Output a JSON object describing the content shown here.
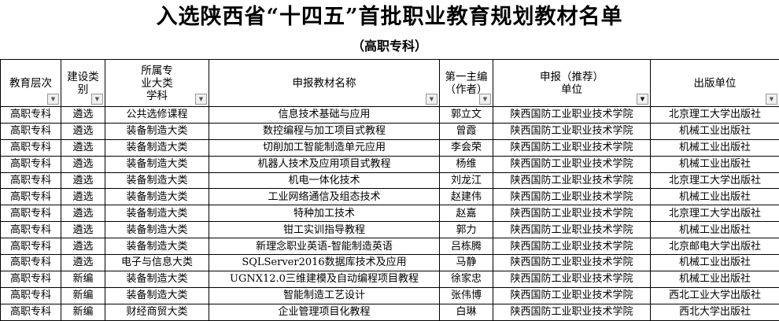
{
  "title": "入选陕西省“十四五”首批职业教育规划教材名单",
  "subtitle": "（高职专科）",
  "headers": [
    {
      "l1": "教育层次",
      "l2": "",
      "l3": "",
      "filter": "dropdown"
    },
    {
      "l1": "建设类",
      "l2": "别",
      "l3": "",
      "filter": "dropdown"
    },
    {
      "l1": "所属专",
      "l2": "业大类",
      "l3": "学科",
      "filter": "dropdown"
    },
    {
      "l1": "申报教材名称",
      "l2": "",
      "l3": "",
      "filter": "dropdown"
    },
    {
      "l1": "第一主编",
      "l2": "（作者）",
      "l3": "",
      "filter": "dropdown"
    },
    {
      "l1": "申报（推荐）",
      "l2": "单位",
      "l3": "",
      "filter": "filter-active"
    },
    {
      "l1": "出版单位",
      "l2": "",
      "l3": "",
      "filter": "dropdown"
    }
  ],
  "rows": [
    [
      "高职专科",
      "遴选",
      "公共选修课程",
      "信息技术基础与应用",
      "郭立文",
      "陕西国防工业职业技术学院",
      "北京理工大学出版社"
    ],
    [
      "高职专科",
      "遴选",
      "装备制造大类",
      "数控编程与加工项目式教程",
      "曾霞",
      "陕西国防工业职业技术学院",
      "机械工业出版社"
    ],
    [
      "高职专科",
      "遴选",
      "装备制造大类",
      "切削加工智能制造单元应用",
      "李会荣",
      "陕西国防工业职业技术学院",
      "机械工业出版社"
    ],
    [
      "高职专科",
      "遴选",
      "装备制造大类",
      "机器人技术及应用项目式教程",
      "杨维",
      "陕西国防工业职业技术学院",
      "机械工业出版社"
    ],
    [
      "高职专科",
      "遴选",
      "装备制造大类",
      "机电一体化技术",
      "刘龙江",
      "陕西国防工业职业技术学院",
      "北京理工大学出版社"
    ],
    [
      "高职专科",
      "遴选",
      "装备制造大类",
      "工业网络通信及组态技术",
      "赵建伟",
      "陕西国防工业职业技术学院",
      "机械工业出版社"
    ],
    [
      "高职专科",
      "遴选",
      "装备制造大类",
      "特种加工技术",
      "赵嘉",
      "陕西国防工业职业技术学院",
      "北京理工大学出版社"
    ],
    [
      "高职专科",
      "遴选",
      "装备制造大类",
      "钳工实训指导教程",
      "郭力",
      "陕西国防工业职业技术学院",
      "机械工业出版社"
    ],
    [
      "高职专科",
      "遴选",
      "装备制造大类",
      "新理念职业英语-智能制造英语",
      "吕栋腾",
      "陕西国防工业职业技术学院",
      "北京邮电大学出版社"
    ],
    [
      "高职专科",
      "遴选",
      "电子与信息大类",
      "SQLServer2016数据库技术及应用",
      "马静",
      "陕西国防工业职业技术学院",
      "机械工业出版社"
    ],
    [
      "高职专科",
      "新编",
      "装备制造大类",
      "UGNX12.0三维建模及自动编程项目教程",
      "徐家忠",
      "陕西国防工业职业技术学院",
      "机械工业出版社"
    ],
    [
      "高职专科",
      "新编",
      "装备制造大类",
      "智能制造工艺设计",
      "张伟博",
      "陕西国防工业职业技术学院",
      "西北工业大学出版社"
    ],
    [
      "高职专科",
      "新编",
      "财经商贸大类",
      "企业管理项目化教程",
      "白琳",
      "陕西国防工业职业技术学院",
      "西北大学出版社"
    ]
  ]
}
